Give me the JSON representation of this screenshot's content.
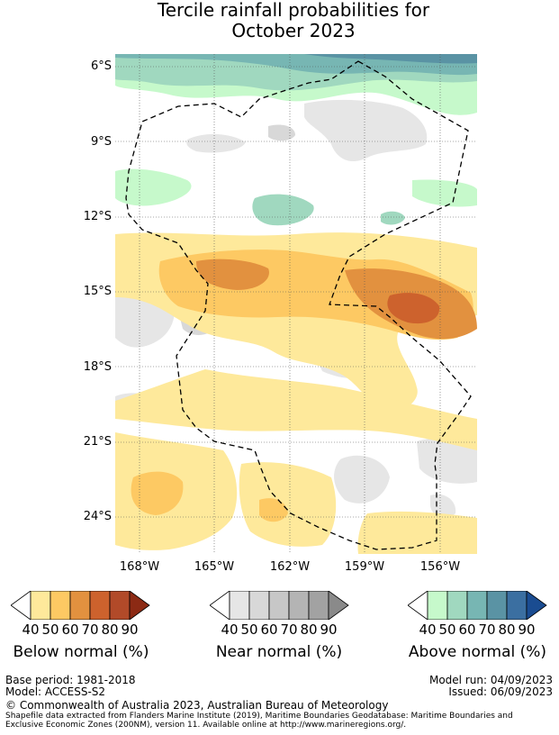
{
  "title": {
    "line1": "Tercile rainfall probabilities for",
    "line2": "October 2023"
  },
  "map": {
    "lat_labels": [
      "6°S",
      "9°S",
      "12°S",
      "15°S",
      "18°S",
      "21°S",
      "24°S"
    ],
    "lon_labels": [
      "168°W",
      "165°W",
      "162°W",
      "159°W",
      "156°W"
    ],
    "eez_boundary": "dashed"
  },
  "colorbars": {
    "below": {
      "label": "Below normal (%)",
      "ticks": [
        "40",
        "50",
        "60",
        "70",
        "80",
        "90"
      ],
      "colors": [
        "#ffffff",
        "#fee99b",
        "#fdc963",
        "#e2913f",
        "#cd622d",
        "#b24a29",
        "#8c2a14"
      ]
    },
    "near": {
      "label": "Near normal (%)",
      "ticks": [
        "40",
        "50",
        "60",
        "70",
        "80",
        "90"
      ],
      "colors": [
        "#ffffff",
        "#e6e6e6",
        "#d8d8d8",
        "#c7c7c7",
        "#b4b4b4",
        "#a2a2a2",
        "#8a8a8a"
      ]
    },
    "above": {
      "label": "Above normal (%)",
      "ticks": [
        "40",
        "50",
        "60",
        "70",
        "80",
        "90"
      ],
      "colors": [
        "#ffffff",
        "#c6f9cb",
        "#a0d8bf",
        "#77b6b3",
        "#5a93a4",
        "#3b6fa1",
        "#1a4c91"
      ]
    }
  },
  "footer": {
    "base_period": "Base period: 1981-2018",
    "model": "Model: ACCESS-S2",
    "model_run": "Model run: 04/09/2023",
    "issued": "Issued: 06/09/2023",
    "copyright": "© Commonwealth of Australia 2023, Australian Bureau of Meteorology",
    "shapefile_1": "Shapefile data extracted from Flanders Marine Institute (2019), Maritime Boundaries Geodatabase: Maritime Boundaries and",
    "shapefile_2": "Exclusive Economic Zones (200NM), version 11. Available online at http://www.marineregions.org/."
  }
}
